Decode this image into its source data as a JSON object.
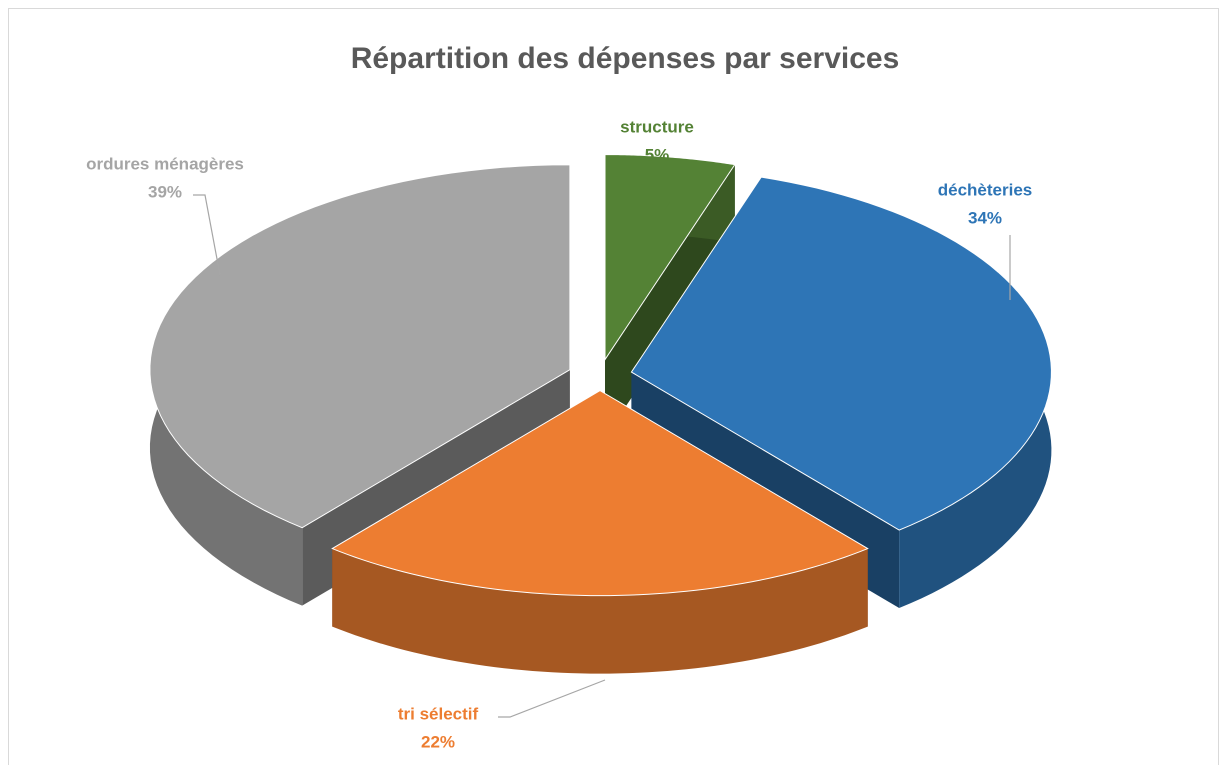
{
  "chart_data": {
    "type": "pie3d",
    "title": "Répartition des dépenses par services",
    "categories": [
      "structure",
      "déchèteries",
      "tri sélectif",
      "ordures ménagères"
    ],
    "values": [
      5,
      34,
      22,
      39
    ],
    "value_labels": [
      "5%",
      "34%",
      "22%",
      "39%"
    ],
    "colors": [
      "#548235",
      "#2e75b6",
      "#ed7d31",
      "#a5a5a5"
    ]
  }
}
